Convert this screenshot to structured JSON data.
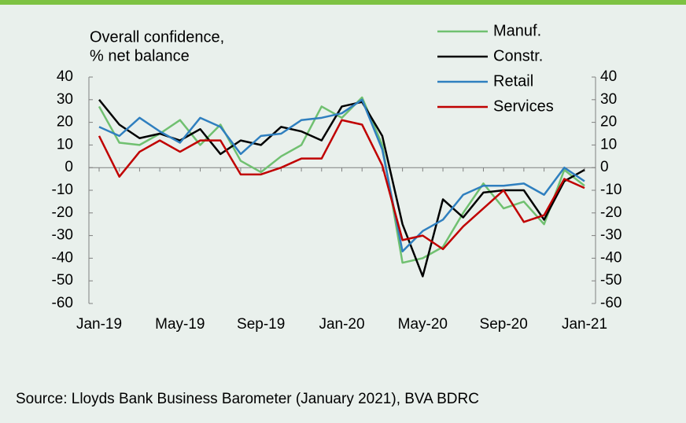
{
  "chart_data": {
    "type": "line",
    "title": [
      "Overall confidence,",
      "% net balance"
    ],
    "source": "Source: Lloyds Bank Business Barometer (January 2021), BVA BDRC",
    "categories": [
      "Jan-19",
      null,
      null,
      null,
      "May-19",
      null,
      null,
      null,
      "Sep-19",
      null,
      null,
      null,
      "Jan-20",
      null,
      null,
      null,
      "May-20",
      null,
      null,
      null,
      "Sep-20",
      null,
      null,
      null,
      "Jan-21"
    ],
    "series": [
      {
        "name": "Manuf.",
        "color": "#70c070",
        "values": [
          27,
          11,
          10,
          15,
          21,
          10,
          19,
          3,
          -2,
          5,
          10,
          27,
          22,
          31,
          10,
          -42,
          -40,
          -35,
          -20,
          -7,
          -18,
          -15,
          -25,
          -1,
          -8
        ]
      },
      {
        "name": "Constr.",
        "color": "#000000",
        "values": [
          30,
          19,
          13,
          15,
          12,
          17,
          6,
          12,
          10,
          18,
          16,
          12,
          27,
          29,
          14,
          -25,
          -48,
          -14,
          -22,
          -11,
          -10,
          -10,
          -23,
          -6,
          -1
        ]
      },
      {
        "name": "Retail",
        "color": "#2f7fbf",
        "values": [
          18,
          14,
          22,
          16,
          11,
          22,
          18,
          6,
          14,
          15,
          21,
          22,
          24,
          30,
          8,
          -37,
          -28,
          -23,
          -12,
          -8,
          -8,
          -7,
          -12,
          0,
          -6
        ]
      },
      {
        "name": "Services",
        "color": "#c00000",
        "values": [
          14,
          -4,
          7,
          12,
          7,
          12,
          12,
          -3,
          -3,
          0,
          4,
          4,
          21,
          19,
          1,
          -32,
          -30,
          -36,
          -26,
          -18,
          -10,
          -24,
          -21,
          -5,
          -9
        ]
      }
    ],
    "ylim": [
      -60,
      40
    ],
    "yticks": [
      -60,
      -50,
      -40,
      -30,
      -20,
      -10,
      0,
      10,
      20,
      30,
      40
    ],
    "y2lim": [
      -60,
      40
    ],
    "y2ticks": [
      -60,
      -50,
      -40,
      -30,
      -20,
      -10,
      0,
      10,
      20,
      30,
      40
    ],
    "legend": "top-right"
  }
}
